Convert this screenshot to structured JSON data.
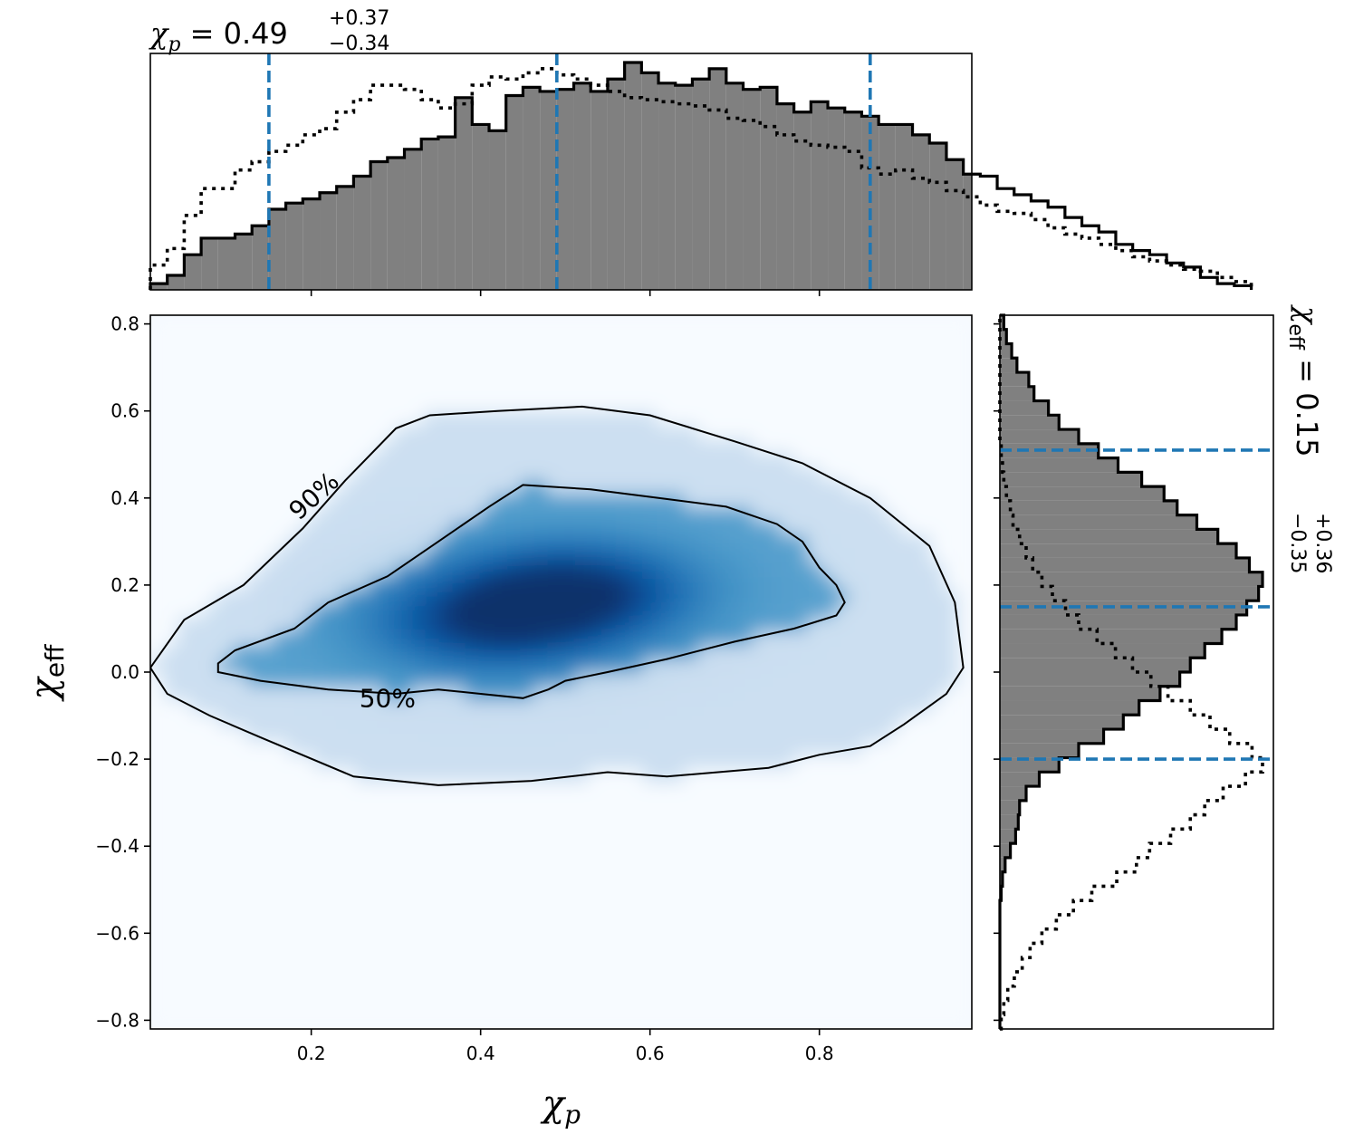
{
  "chart_data": {
    "type": "heatmap",
    "subtype": "corner-plot (2D posterior density with marginal histograms)",
    "xlabel": "χp",
    "ylabel": "χeff",
    "xlim": [
      0.01,
      0.98
    ],
    "ylim": [
      -0.82,
      0.82
    ],
    "x_ticks": [
      0.2,
      0.4,
      0.6,
      0.8
    ],
    "x_tick_labels": [
      "0.2",
      "0.4",
      "0.6",
      "0.8"
    ],
    "y_ticks": [
      -0.8,
      -0.6,
      -0.4,
      -0.2,
      0.0,
      0.2,
      0.4,
      0.6,
      0.8
    ],
    "y_tick_labels": [
      "−0.8",
      "−0.6",
      "−0.4",
      "−0.2",
      "0.0",
      "0.2",
      "0.4",
      "0.6",
      "0.8"
    ],
    "colormap": "Blues",
    "density_peaks": [
      {
        "x": 0.51,
        "y": 0.19,
        "weight": 1.0
      },
      {
        "x": 0.41,
        "y": 0.11,
        "weight": 0.85
      }
    ],
    "contours": [
      {
        "label": "90%",
        "points": [
          [
            0.01,
            0.01
          ],
          [
            0.05,
            0.12
          ],
          [
            0.12,
            0.2
          ],
          [
            0.19,
            0.33
          ],
          [
            0.24,
            0.44
          ],
          [
            0.3,
            0.56
          ],
          [
            0.34,
            0.59
          ],
          [
            0.42,
            0.6
          ],
          [
            0.52,
            0.61
          ],
          [
            0.6,
            0.59
          ],
          [
            0.7,
            0.53
          ],
          [
            0.78,
            0.48
          ],
          [
            0.86,
            0.4
          ],
          [
            0.93,
            0.29
          ],
          [
            0.96,
            0.16
          ],
          [
            0.97,
            0.01
          ],
          [
            0.95,
            -0.05
          ],
          [
            0.9,
            -0.12
          ],
          [
            0.86,
            -0.17
          ],
          [
            0.8,
            -0.19
          ],
          [
            0.74,
            -0.22
          ],
          [
            0.62,
            -0.24
          ],
          [
            0.55,
            -0.23
          ],
          [
            0.46,
            -0.25
          ],
          [
            0.35,
            -0.26
          ],
          [
            0.25,
            -0.24
          ],
          [
            0.14,
            -0.15
          ],
          [
            0.08,
            -0.1
          ],
          [
            0.03,
            -0.05
          ],
          [
            0.01,
            0.01
          ]
        ]
      },
      {
        "label": "50%",
        "points": [
          [
            0.09,
            0.02
          ],
          [
            0.11,
            0.05
          ],
          [
            0.18,
            0.1
          ],
          [
            0.22,
            0.16
          ],
          [
            0.29,
            0.22
          ],
          [
            0.35,
            0.3
          ],
          [
            0.41,
            0.38
          ],
          [
            0.45,
            0.43
          ],
          [
            0.53,
            0.42
          ],
          [
            0.61,
            0.4
          ],
          [
            0.69,
            0.38
          ],
          [
            0.75,
            0.34
          ],
          [
            0.78,
            0.3
          ],
          [
            0.8,
            0.24
          ],
          [
            0.82,
            0.2
          ],
          [
            0.83,
            0.16
          ],
          [
            0.82,
            0.13
          ],
          [
            0.77,
            0.1
          ],
          [
            0.7,
            0.07
          ],
          [
            0.62,
            0.03
          ],
          [
            0.55,
            0.0
          ],
          [
            0.5,
            -0.02
          ],
          [
            0.48,
            -0.04
          ],
          [
            0.45,
            -0.06
          ],
          [
            0.4,
            -0.05
          ],
          [
            0.35,
            -0.04
          ],
          [
            0.3,
            -0.05
          ],
          [
            0.22,
            -0.04
          ],
          [
            0.14,
            -0.02
          ],
          [
            0.09,
            0.0
          ],
          [
            0.09,
            0.02
          ]
        ]
      }
    ],
    "top_marginal": {
      "title_base": "χ",
      "title_sub": "p",
      "title_value": " = 0.49",
      "title_upper": "+0.37",
      "title_lower": "−0.34",
      "median": 0.49,
      "interval": [
        0.15,
        0.86
      ],
      "bin_edges_start": 0.01,
      "bin_width": 0.02,
      "posterior_heights": [
        3,
        7,
        17,
        25,
        25,
        27,
        31,
        39,
        42,
        44,
        47,
        50,
        55,
        62,
        64,
        68,
        73,
        74,
        93,
        80,
        77,
        94,
        98,
        96,
        97,
        100,
        96,
        102,
        110,
        105,
        100,
        99,
        102,
        107,
        100,
        97,
        98,
        90,
        86,
        91,
        88,
        86,
        84,
        80,
        80,
        75,
        71,
        63,
        56,
        55,
        49,
        46,
        43,
        40,
        35,
        31,
        28,
        22,
        19,
        17,
        13,
        11,
        6,
        3,
        2
      ],
      "prior_heights": [
        12,
        20,
        36,
        49,
        49,
        58,
        62,
        67,
        70,
        75,
        78,
        86,
        92,
        99,
        99,
        97,
        92,
        88,
        90,
        99,
        103,
        102,
        105,
        107,
        104,
        102,
        99,
        96,
        93,
        92,
        91,
        90,
        89,
        87,
        83,
        82,
        79,
        75,
        72,
        70,
        69,
        67,
        59,
        56,
        58,
        54,
        52,
        48,
        45,
        41,
        38,
        37,
        34,
        30,
        27,
        25,
        22,
        19,
        16,
        14,
        12,
        10,
        9,
        6,
        4
      ]
    },
    "right_marginal": {
      "title_base": "χ",
      "title_sub": "eff",
      "title_value": " = 0.15",
      "title_upper": "+0.36",
      "title_lower": "−0.35",
      "median": 0.15,
      "interval": [
        -0.2,
        0.51
      ],
      "bin_edges_start": -0.82,
      "bin_width": 0.0328,
      "posterior_widths": [
        0,
        0,
        0,
        0,
        0,
        0,
        0,
        0,
        0,
        1,
        2,
        4,
        8,
        12,
        14,
        15,
        20,
        30,
        45,
        60,
        79,
        94,
        106,
        122,
        137,
        145,
        156,
        169,
        180,
        188,
        197,
        200,
        190,
        180,
        166,
        150,
        135,
        125,
        108,
        90,
        75,
        60,
        45,
        37,
        26,
        22,
        13,
        9,
        5,
        3
      ],
      "prior_widths": [
        1,
        3,
        6,
        11,
        17,
        23,
        32,
        43,
        56,
        70,
        89,
        104,
        114,
        130,
        145,
        156,
        170,
        187,
        200,
        192,
        175,
        160,
        145,
        128,
        115,
        101,
        88,
        74,
        60,
        50,
        40,
        32,
        25,
        20,
        15,
        10,
        8,
        5,
        3,
        2,
        1,
        0,
        0,
        0,
        0,
        0,
        0,
        0,
        0,
        0
      ]
    },
    "contour_labels": [
      "90%",
      "50%"
    ],
    "grid": false,
    "legend": "none"
  }
}
